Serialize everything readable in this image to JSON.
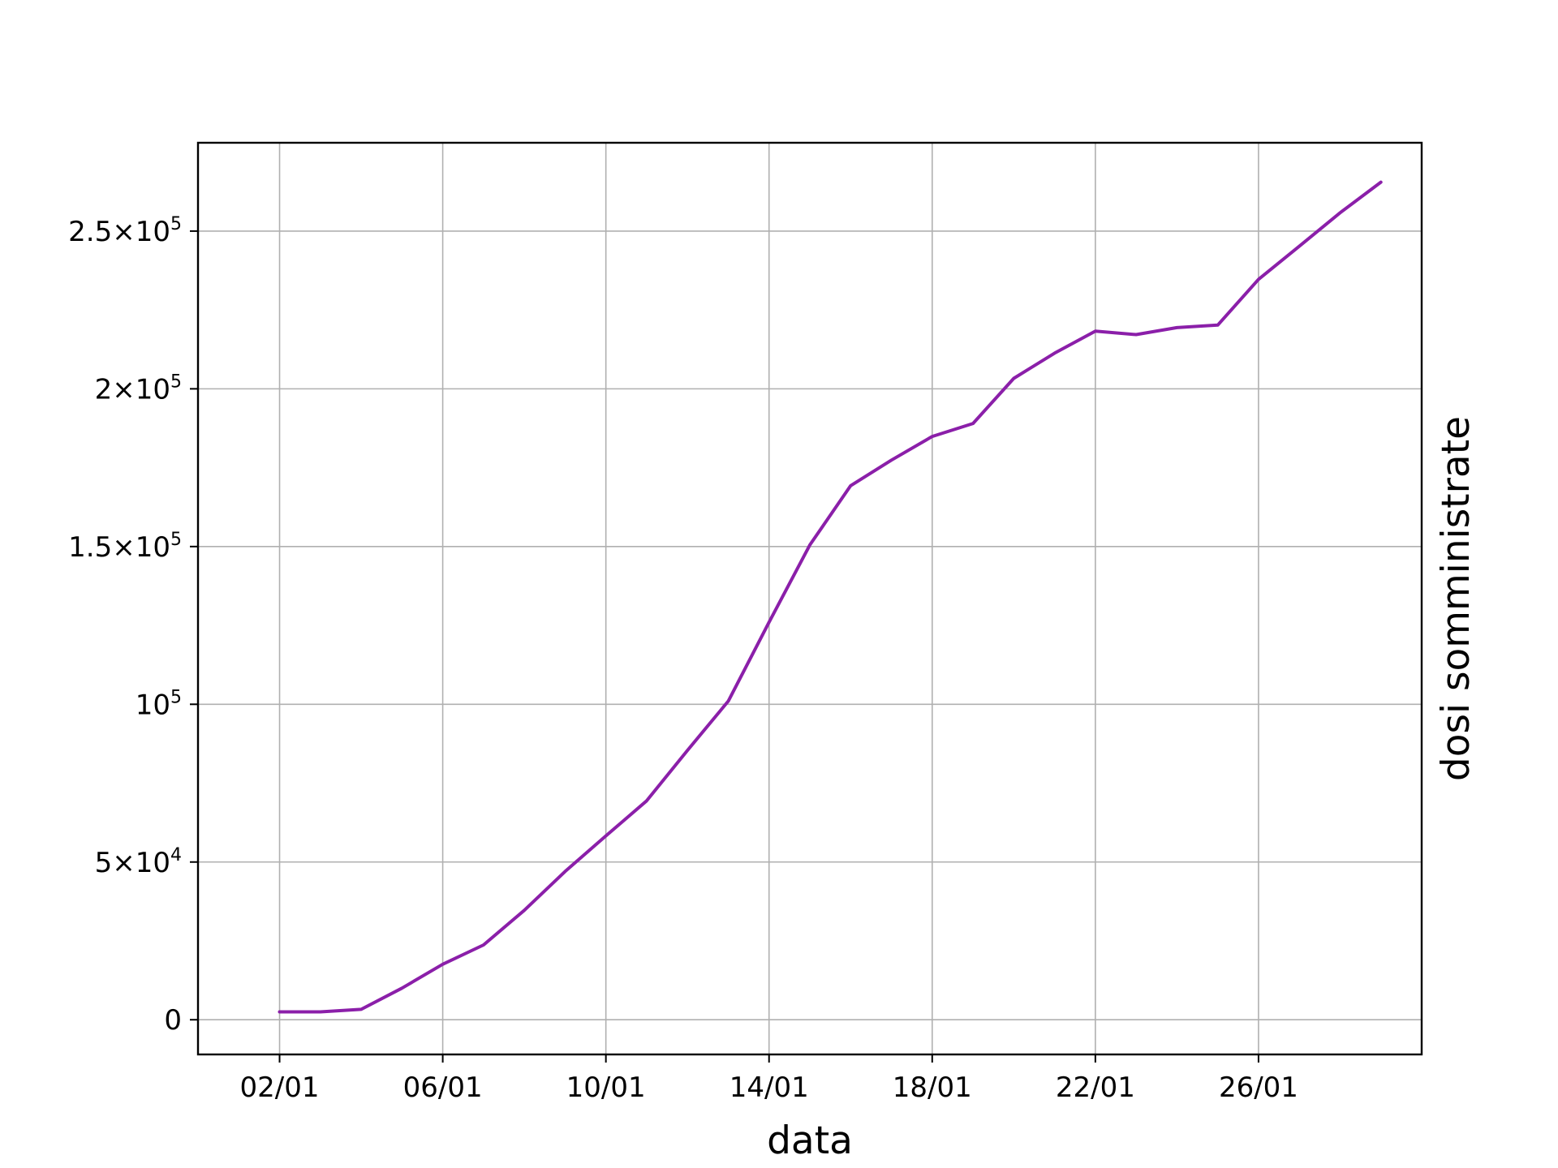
{
  "chart_data": {
    "type": "line",
    "title": "",
    "xlabel": "data",
    "ylabel": "dosi somministrate",
    "x_tick_labels": [
      "02/01",
      "06/01",
      "10/01",
      "14/01",
      "18/01",
      "22/01",
      "26/01"
    ],
    "x_tick_dates": [
      "2021-01-02",
      "2021-01-06",
      "2021-01-10",
      "2021-01-14",
      "2021-01-18",
      "2021-01-22",
      "2021-01-26"
    ],
    "y_ticks": [
      {
        "value": 0,
        "mantissa": "0",
        "exp": ""
      },
      {
        "value": 50000,
        "mantissa": "5×10",
        "exp": "4"
      },
      {
        "value": 100000,
        "mantissa": "10",
        "exp": "5"
      },
      {
        "value": 150000,
        "mantissa": "1.5×10",
        "exp": "5"
      },
      {
        "value": 200000,
        "mantissa": "2×10",
        "exp": "5"
      },
      {
        "value": 250000,
        "mantissa": "2.5×10",
        "exp": "5"
      }
    ],
    "xlim": [
      "2020-12-31",
      "2021-01-30"
    ],
    "ylim": [
      -11000,
      278000
    ],
    "grid": true,
    "ylabel_position": "right",
    "series": [
      {
        "color": "#8b1fa9",
        "x": [
          "2021-01-02",
          "2021-01-03",
          "2021-01-04",
          "2021-01-05",
          "2021-01-06",
          "2021-01-07",
          "2021-01-08",
          "2021-01-09",
          "2021-01-10",
          "2021-01-11",
          "2021-01-12",
          "2021-01-13",
          "2021-01-14",
          "2021-01-15",
          "2021-01-16",
          "2021-01-17",
          "2021-01-18",
          "2021-01-19",
          "2021-01-20",
          "2021-01-21",
          "2021-01-22",
          "2021-01-23",
          "2021-01-24",
          "2021-01-25",
          "2021-01-26",
          "2021-01-27",
          "2021-01-28",
          "2021-01-29"
        ],
        "values": [
          2500,
          2500,
          3300,
          10000,
          17600,
          23700,
          34700,
          47000,
          58300,
          69400,
          85400,
          101000,
          126000,
          150500,
          169300,
          177400,
          184900,
          189000,
          203300,
          211300,
          218300,
          217200,
          219400,
          220200,
          234700,
          245200,
          255800,
          265500
        ]
      }
    ]
  }
}
